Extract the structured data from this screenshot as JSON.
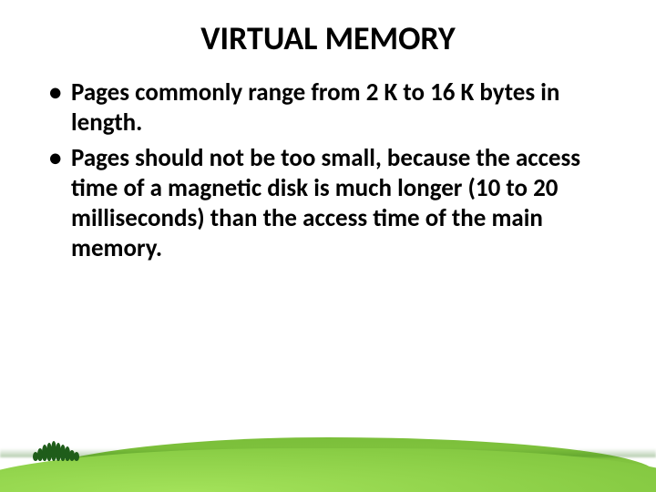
{
  "slide": {
    "title": "VIRTUAL MEMORY",
    "title_fontsize": 36,
    "body_fontsize": 27,
    "text_color": "#000000",
    "background_color": "#ffffff",
    "bullets": [
      "Pages commonly range from 2 K to 16 K bytes in length.",
      "Pages should not be too small, because the access time of a magnetic disk is much longer (10 to 20 milliseconds) than the access time of the main memory."
    ]
  },
  "landscape": {
    "hill_back_color": "#7bbf3a",
    "hill_front_color": "#8ecf4a",
    "tree_color": "#1f5d1a",
    "tree_heights": [
      10,
      14,
      18,
      20,
      22,
      20,
      18,
      16,
      12,
      10
    ]
  }
}
